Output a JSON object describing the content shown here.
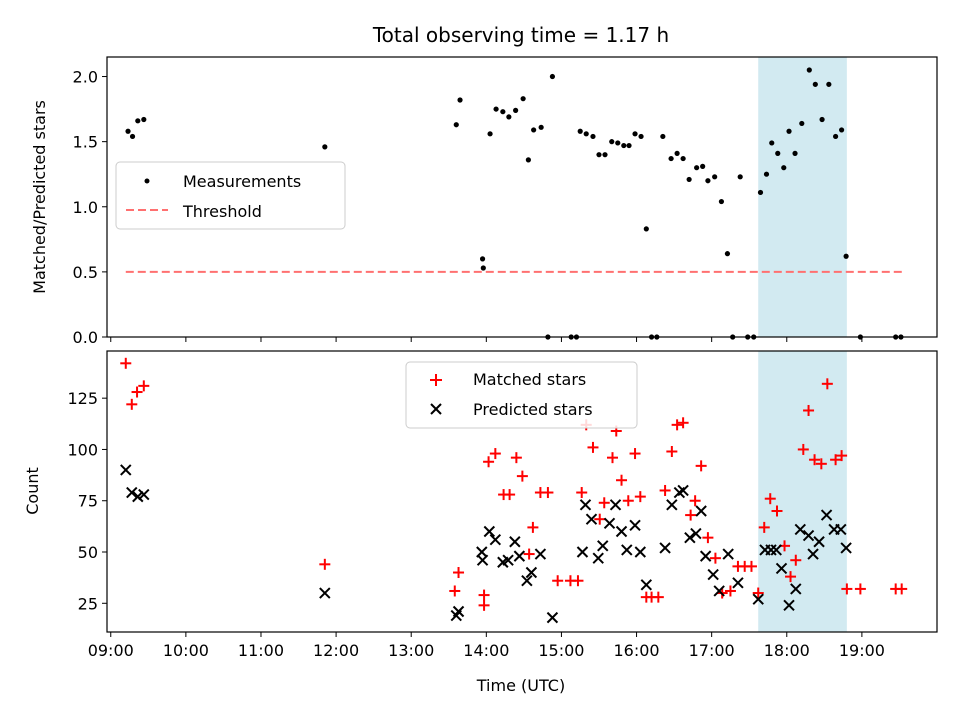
{
  "figure": {
    "title": "Total observing time = 1.17 h"
  },
  "highlight": {
    "x_range": [
      17.62,
      18.8
    ],
    "color": "#add8e6"
  },
  "chart_data": [
    {
      "type": "scatter",
      "panel": "top",
      "ylabel": "Matched/Predicted stars",
      "xlim": [
        8.95,
        20.0
      ],
      "ylim": [
        0,
        2.15
      ],
      "yticks": [
        0.0,
        0.5,
        1.0,
        1.5,
        2.0
      ],
      "ytick_labels": [
        "0.0",
        "0.5",
        "1.0",
        "1.5",
        "2.0"
      ],
      "legend": {
        "placement": "center-left",
        "entries": [
          "Measurements",
          "Threshold"
        ]
      },
      "threshold": {
        "name": "Threshold",
        "value": 0.5,
        "x_range": [
          9.2,
          19.55
        ],
        "color": "#ff7070"
      },
      "series": [
        {
          "name": "Measurements",
          "color": "#000000",
          "points": [
            [
              9.23,
              1.58
            ],
            [
              9.29,
              1.54
            ],
            [
              9.36,
              1.66
            ],
            [
              9.44,
              1.67
            ],
            [
              11.85,
              1.46
            ],
            [
              13.6,
              1.63
            ],
            [
              13.65,
              1.82
            ],
            [
              13.95,
              0.6
            ],
            [
              13.96,
              0.53
            ],
            [
              14.05,
              1.56
            ],
            [
              14.13,
              1.75
            ],
            [
              14.22,
              1.73
            ],
            [
              14.3,
              1.69
            ],
            [
              14.39,
              1.74
            ],
            [
              14.49,
              1.83
            ],
            [
              14.56,
              1.36
            ],
            [
              14.63,
              1.59
            ],
            [
              14.73,
              1.61
            ],
            [
              14.88,
              2.0
            ],
            [
              14.82,
              0.0
            ],
            [
              15.13,
              0.0
            ],
            [
              15.2,
              0.0
            ],
            [
              15.25,
              1.58
            ],
            [
              15.33,
              1.56
            ],
            [
              15.42,
              1.54
            ],
            [
              15.5,
              1.4
            ],
            [
              15.58,
              1.4
            ],
            [
              15.67,
              1.5
            ],
            [
              15.75,
              1.49
            ],
            [
              15.83,
              1.47
            ],
            [
              15.9,
              1.47
            ],
            [
              15.98,
              1.56
            ],
            [
              16.06,
              1.54
            ],
            [
              16.13,
              0.83
            ],
            [
              16.2,
              0.0
            ],
            [
              16.27,
              0.0
            ],
            [
              16.35,
              1.54
            ],
            [
              16.46,
              1.37
            ],
            [
              16.54,
              1.41
            ],
            [
              16.62,
              1.37
            ],
            [
              16.7,
              1.21
            ],
            [
              16.8,
              1.3
            ],
            [
              16.88,
              1.31
            ],
            [
              16.95,
              1.2
            ],
            [
              17.04,
              1.23
            ],
            [
              17.13,
              1.04
            ],
            [
              17.21,
              0.64
            ],
            [
              17.28,
              0.0
            ],
            [
              17.38,
              1.23
            ],
            [
              17.48,
              0.0
            ],
            [
              17.56,
              0.0
            ],
            [
              17.65,
              1.11
            ],
            [
              17.73,
              1.25
            ],
            [
              17.8,
              1.49
            ],
            [
              17.88,
              1.41
            ],
            [
              17.96,
              1.3
            ],
            [
              18.03,
              1.58
            ],
            [
              18.11,
              1.41
            ],
            [
              18.2,
              1.64
            ],
            [
              18.3,
              2.05
            ],
            [
              18.38,
              1.94
            ],
            [
              18.47,
              1.67
            ],
            [
              18.56,
              1.94
            ],
            [
              18.65,
              1.54
            ],
            [
              18.73,
              1.59
            ],
            [
              18.79,
              0.62
            ],
            [
              18.98,
              0.0
            ],
            [
              19.45,
              0.0
            ],
            [
              19.52,
              0.0
            ]
          ]
        }
      ]
    },
    {
      "type": "scatter",
      "panel": "bottom",
      "xlabel": "Time (UTC)",
      "ylabel": "Count",
      "xlim": [
        8.95,
        20.0
      ],
      "ylim": [
        11,
        148
      ],
      "xticks": [
        9,
        10,
        11,
        12,
        13,
        14,
        15,
        16,
        17,
        18,
        19
      ],
      "xtick_labels": [
        "09:00",
        "10:00",
        "11:00",
        "12:00",
        "13:00",
        "14:00",
        "15:00",
        "16:00",
        "17:00",
        "18:00",
        "19:00"
      ],
      "yticks": [
        25,
        50,
        75,
        100,
        125
      ],
      "ytick_labels": [
        "25",
        "50",
        "75",
        "100",
        "125"
      ],
      "legend": {
        "placement": "upper-center",
        "entries": [
          "Matched stars",
          "Predicted stars"
        ]
      },
      "series": [
        {
          "name": "Matched stars",
          "marker": "plus",
          "color": "#ff0000",
          "points": [
            [
              9.2,
              142
            ],
            [
              9.28,
              122
            ],
            [
              9.35,
              128
            ],
            [
              9.44,
              131
            ],
            [
              11.85,
              44
            ],
            [
              13.58,
              31
            ],
            [
              13.63,
              40
            ],
            [
              13.97,
              24
            ],
            [
              13.97,
              29
            ],
            [
              14.03,
              94
            ],
            [
              14.12,
              98
            ],
            [
              14.23,
              78
            ],
            [
              14.31,
              78
            ],
            [
              14.4,
              96
            ],
            [
              14.48,
              87
            ],
            [
              14.57,
              49
            ],
            [
              14.62,
              62
            ],
            [
              14.72,
              79
            ],
            [
              14.82,
              79
            ],
            [
              14.95,
              36
            ],
            [
              15.12,
              36
            ],
            [
              15.22,
              36
            ],
            [
              15.27,
              79
            ],
            [
              15.33,
              112
            ],
            [
              15.42,
              101
            ],
            [
              15.51,
              66
            ],
            [
              15.57,
              74
            ],
            [
              15.68,
              96
            ],
            [
              15.73,
              109
            ],
            [
              15.8,
              85
            ],
            [
              15.89,
              75
            ],
            [
              15.98,
              98
            ],
            [
              16.05,
              77
            ],
            [
              16.13,
              28
            ],
            [
              16.2,
              28
            ],
            [
              16.29,
              28
            ],
            [
              16.38,
              80
            ],
            [
              16.47,
              99
            ],
            [
              16.54,
              112
            ],
            [
              16.62,
              113
            ],
            [
              16.72,
              68
            ],
            [
              16.78,
              75
            ],
            [
              16.86,
              92
            ],
            [
              16.95,
              57
            ],
            [
              17.05,
              47
            ],
            [
              17.14,
              30
            ],
            [
              17.25,
              31
            ],
            [
              17.35,
              43
            ],
            [
              17.44,
              43
            ],
            [
              17.53,
              43
            ],
            [
              17.62,
              30
            ],
            [
              17.7,
              62
            ],
            [
              17.78,
              76
            ],
            [
              17.87,
              70
            ],
            [
              17.97,
              53
            ],
            [
              18.05,
              38
            ],
            [
              18.12,
              46
            ],
            [
              18.22,
              100
            ],
            [
              18.29,
              119
            ],
            [
              18.37,
              95
            ],
            [
              18.46,
              93
            ],
            [
              18.54,
              132
            ],
            [
              18.65,
              95
            ],
            [
              18.73,
              97
            ],
            [
              18.8,
              32
            ],
            [
              18.98,
              32
            ],
            [
              19.45,
              32
            ],
            [
              19.53,
              32
            ]
          ]
        },
        {
          "name": "Predicted stars",
          "marker": "x",
          "color": "#000000",
          "points": [
            [
              9.2,
              90
            ],
            [
              9.28,
              79
            ],
            [
              9.36,
              77
            ],
            [
              9.44,
              78
            ],
            [
              11.85,
              30
            ],
            [
              13.6,
              19
            ],
            [
              13.63,
              21
            ],
            [
              13.94,
              50
            ],
            [
              13.95,
              46
            ],
            [
              14.04,
              60
            ],
            [
              14.12,
              56
            ],
            [
              14.22,
              45
            ],
            [
              14.29,
              46
            ],
            [
              14.38,
              55
            ],
            [
              14.44,
              48
            ],
            [
              14.54,
              36
            ],
            [
              14.6,
              40
            ],
            [
              14.72,
              49
            ],
            [
              14.88,
              18
            ],
            [
              15.28,
              50
            ],
            [
              15.32,
              73
            ],
            [
              15.4,
              66
            ],
            [
              15.49,
              47
            ],
            [
              15.55,
              53
            ],
            [
              15.64,
              64
            ],
            [
              15.72,
              73
            ],
            [
              15.8,
              60
            ],
            [
              15.87,
              51
            ],
            [
              15.98,
              63
            ],
            [
              16.05,
              50
            ],
            [
              16.13,
              34
            ],
            [
              16.38,
              52
            ],
            [
              16.47,
              73
            ],
            [
              16.57,
              79
            ],
            [
              16.62,
              80
            ],
            [
              16.71,
              57
            ],
            [
              16.79,
              59
            ],
            [
              16.86,
              70
            ],
            [
              16.92,
              48
            ],
            [
              17.02,
              39
            ],
            [
              17.1,
              31
            ],
            [
              17.22,
              49
            ],
            [
              17.35,
              35
            ],
            [
              17.62,
              27
            ],
            [
              17.71,
              51
            ],
            [
              17.79,
              51
            ],
            [
              17.86,
              51
            ],
            [
              17.93,
              42
            ],
            [
              18.03,
              24
            ],
            [
              18.12,
              32
            ],
            [
              18.18,
              61
            ],
            [
              18.29,
              58
            ],
            [
              18.35,
              49
            ],
            [
              18.43,
              55
            ],
            [
              18.53,
              68
            ],
            [
              18.63,
              61
            ],
            [
              18.72,
              61
            ],
            [
              18.79,
              52
            ]
          ]
        }
      ]
    }
  ]
}
